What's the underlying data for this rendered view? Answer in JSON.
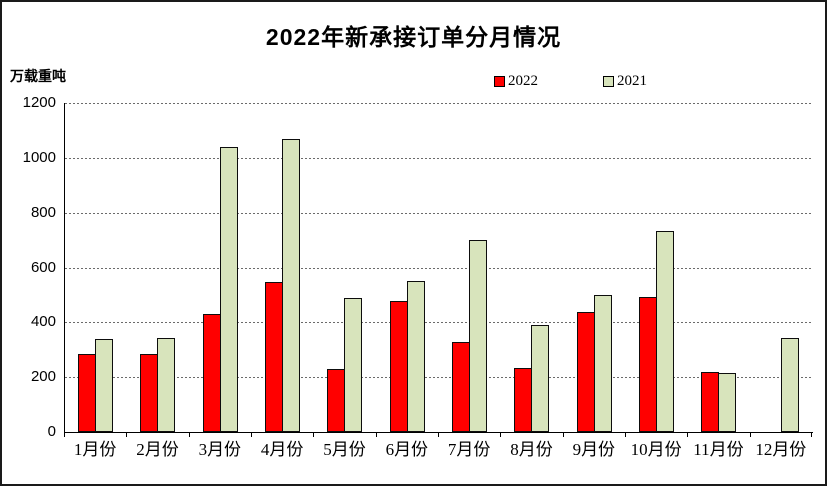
{
  "chart_data": {
    "type": "bar",
    "title": "2022年新承接订单分月情况",
    "ylabel": "万载重吨",
    "xlabel": "",
    "categories": [
      "1月份",
      "2月份",
      "3月份",
      "4月份",
      "5月份",
      "6月份",
      "7月份",
      "8月份",
      "9月份",
      "10月份",
      "11月份",
      "12月份"
    ],
    "series": [
      {
        "name": "2022",
        "color": "#ff0000",
        "values": [
          283,
          284,
          430,
          548,
          230,
          477,
          328,
          234,
          438,
          492,
          220,
          0
        ]
      },
      {
        "name": "2021",
        "color": "#d8e4bc",
        "values": [
          338,
          343,
          1038,
          1068,
          488,
          550,
          700,
          389,
          501,
          733,
          216,
          342
        ]
      }
    ],
    "ylim": [
      0,
      1200
    ],
    "yticks": [
      0,
      200,
      400,
      600,
      800,
      1000,
      1200
    ],
    "grid": "horizontal-dashed",
    "legend_position": "top-center",
    "colors": {
      "axis": "#000000",
      "gridline": "#6b6b6b",
      "background": "#ffffff",
      "border": "#1a1a1a"
    }
  }
}
